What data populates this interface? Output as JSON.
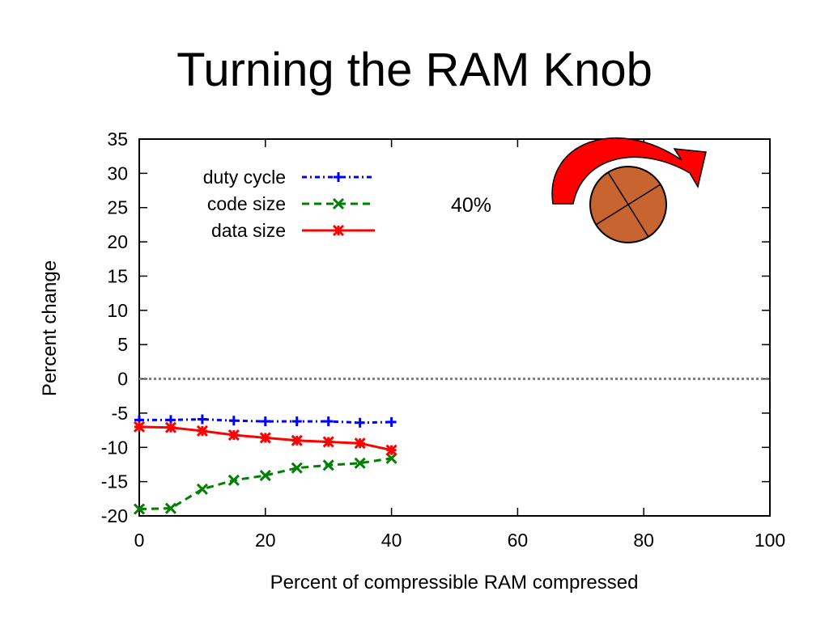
{
  "slide": {
    "title": "Turning the RAM Knob"
  },
  "chart_data": {
    "type": "line",
    "title": "",
    "xlabel": "Percent of compressible RAM compressed",
    "ylabel": "Percent change",
    "xlim": [
      0,
      100
    ],
    "ylim": [
      -20,
      35
    ],
    "xticks": [
      0,
      20,
      40,
      60,
      80,
      100
    ],
    "yticks": [
      35,
      30,
      25,
      20,
      15,
      10,
      5,
      0,
      -5,
      -10,
      -15,
      -20
    ],
    "grid": false,
    "legend_position": "top-left",
    "reference_line": {
      "y": 0,
      "style": "dotted",
      "color": "#808080"
    },
    "annotation": "40%",
    "x": [
      0,
      5,
      10,
      15,
      20,
      25,
      30,
      35,
      40
    ],
    "series": [
      {
        "name": "duty cycle",
        "color": "#0000ff",
        "dash": "dash-dot",
        "marker": "plus",
        "values": [
          -6.0,
          -6.0,
          -5.9,
          -6.1,
          -6.2,
          -6.2,
          -6.2,
          -6.4,
          -6.3
        ]
      },
      {
        "name": "code size",
        "color": "#008000",
        "dash": "dashed",
        "marker": "x",
        "values": [
          -19.0,
          -18.9,
          -16.1,
          -14.8,
          -14.1,
          -13.0,
          -12.6,
          -12.3,
          -11.6
        ]
      },
      {
        "name": "data size",
        "color": "#ff0000",
        "dash": "solid",
        "marker": "asterisk",
        "values": [
          -7.0,
          -7.1,
          -7.6,
          -8.2,
          -8.6,
          -9.0,
          -9.2,
          -9.4,
          -10.4
        ]
      }
    ],
    "knob_graphic": {
      "arrow_color": "#ff0000",
      "knob_color": "#c8642f"
    }
  }
}
